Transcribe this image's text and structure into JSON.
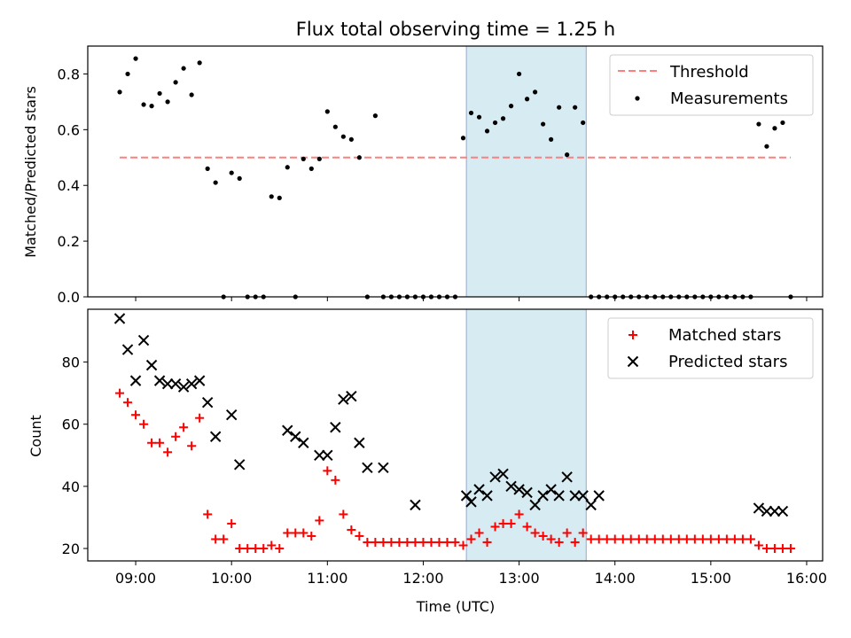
{
  "title": "Flux total observing time = 1.25 h",
  "colors": {
    "threshold": "#ff7f7f",
    "measurements": "#000000",
    "matched": "#ff0000",
    "predicted": "#000000",
    "shade": "#add8e6"
  },
  "chart_data": [
    {
      "type": "scatter",
      "panel": "top",
      "ylabel": "Matched/Predicted stars",
      "xlabel": "",
      "ylim": [
        0,
        0.9
      ],
      "yticks": [
        "0.0",
        "0.2",
        "0.4",
        "0.6",
        "0.8"
      ],
      "shaded_interval": [
        "12:27",
        "13:42"
      ],
      "legend_position": "upper right",
      "threshold": {
        "name": "Threshold",
        "y": 0.5,
        "x_range": [
          "08:50",
          "15:50"
        ]
      },
      "series": [
        {
          "name": "Measurements",
          "x": [
            "08:50",
            "08:55",
            "09:00",
            "09:05",
            "09:10",
            "09:15",
            "09:20",
            "09:25",
            "09:30",
            "09:35",
            "09:40",
            "09:45",
            "09:50",
            "09:55",
            "10:00",
            "10:05",
            "10:10",
            "10:15",
            "10:20",
            "10:25",
            "10:30",
            "10:35",
            "10:40",
            "10:45",
            "10:50",
            "10:55",
            "11:00",
            "11:05",
            "11:10",
            "11:15",
            "11:20",
            "11:25",
            "11:30",
            "11:35",
            "11:40",
            "11:45",
            "11:50",
            "11:55",
            "12:00",
            "12:05",
            "12:10",
            "12:15",
            "12:20",
            "12:25",
            "12:30",
            "12:35",
            "12:40",
            "12:45",
            "12:50",
            "12:55",
            "13:00",
            "13:05",
            "13:10",
            "13:15",
            "13:20",
            "13:25",
            "13:30",
            "13:35",
            "13:40",
            "13:45",
            "13:50",
            "13:55",
            "14:00",
            "14:05",
            "14:10",
            "14:15",
            "14:20",
            "14:25",
            "14:30",
            "14:35",
            "14:40",
            "14:45",
            "14:50",
            "14:55",
            "15:00",
            "15:05",
            "15:10",
            "15:15",
            "15:20",
            "15:25",
            "15:30",
            "15:35",
            "15:40",
            "15:45",
            "15:50"
          ],
          "y": [
            0.735,
            0.8,
            0.855,
            0.69,
            0.685,
            0.73,
            0.7,
            0.77,
            0.82,
            0.725,
            0.84,
            0.46,
            0.41,
            0.0,
            0.445,
            0.425,
            0.0,
            0.0,
            0.0,
            0.36,
            0.355,
            0.465,
            0.0,
            0.495,
            0.46,
            0.495,
            0.665,
            0.61,
            0.575,
            0.565,
            0.5,
            0.0,
            0.65,
            0.0,
            0.0,
            0.0,
            0.0,
            0.0,
            0.0,
            0.0,
            0.0,
            0.0,
            0.0,
            0.57,
            0.66,
            0.645,
            0.595,
            0.625,
            0.64,
            0.685,
            0.8,
            0.71,
            0.735,
            0.62,
            0.565,
            0.68,
            0.51,
            0.68,
            0.625,
            0.0,
            0.0,
            0.0,
            0.0,
            0.0,
            0.0,
            0.0,
            0.0,
            0.0,
            0.0,
            0.0,
            0.0,
            0.0,
            0.0,
            0.0,
            0.0,
            0.0,
            0.0,
            0.0,
            0.0,
            0.0,
            0.62,
            0.54,
            0.605,
            0.625,
            0.0
          ]
        }
      ]
    },
    {
      "type": "scatter",
      "panel": "bottom",
      "xlabel": "Time (UTC)",
      "ylabel": "Count",
      "ylim": [
        16,
        97
      ],
      "yticks": [
        "20",
        "40",
        "60",
        "80"
      ],
      "xticks": [
        "09:00",
        "10:00",
        "11:00",
        "12:00",
        "13:00",
        "14:00",
        "15:00",
        "16:00"
      ],
      "xlim": [
        "08:30",
        "16:10"
      ],
      "shaded_interval": [
        "12:27",
        "13:42"
      ],
      "legend_position": "upper right",
      "series": [
        {
          "name": "Matched stars",
          "marker": "plus",
          "x": [
            "08:50",
            "08:55",
            "09:00",
            "09:05",
            "09:10",
            "09:15",
            "09:20",
            "09:25",
            "09:30",
            "09:35",
            "09:40",
            "09:45",
            "09:50",
            "09:55",
            "10:00",
            "10:05",
            "10:10",
            "10:15",
            "10:20",
            "10:25",
            "10:30",
            "10:35",
            "10:40",
            "10:45",
            "10:50",
            "10:55",
            "11:00",
            "11:05",
            "11:10",
            "11:15",
            "11:20",
            "11:25",
            "11:30",
            "11:35",
            "11:40",
            "11:45",
            "11:50",
            "11:55",
            "12:00",
            "12:05",
            "12:10",
            "12:15",
            "12:20",
            "12:25",
            "12:30",
            "12:35",
            "12:40",
            "12:45",
            "12:50",
            "12:55",
            "13:00",
            "13:05",
            "13:10",
            "13:15",
            "13:20",
            "13:25",
            "13:30",
            "13:35",
            "13:40",
            "13:45",
            "13:50",
            "13:55",
            "14:00",
            "14:05",
            "14:10",
            "14:15",
            "14:20",
            "14:25",
            "14:30",
            "14:35",
            "14:40",
            "14:45",
            "14:50",
            "14:55",
            "15:00",
            "15:05",
            "15:10",
            "15:15",
            "15:20",
            "15:25",
            "15:30",
            "15:35",
            "15:40",
            "15:45",
            "15:50"
          ],
          "y": [
            70,
            67,
            63,
            60,
            54,
            54,
            51,
            56,
            59,
            53,
            62,
            31,
            23,
            23,
            28,
            20,
            20,
            20,
            20,
            21,
            20,
            25,
            25,
            25,
            24,
            29,
            45,
            42,
            31,
            26,
            24,
            22,
            22,
            22,
            22,
            22,
            22,
            22,
            22,
            22,
            22,
            22,
            22,
            21,
            23,
            25,
            22,
            27,
            28,
            28,
            31,
            27,
            25,
            24,
            23,
            22,
            25,
            22,
            25,
            23,
            23,
            23,
            23,
            23,
            23,
            23,
            23,
            23,
            23,
            23,
            23,
            23,
            23,
            23,
            23,
            23,
            23,
            23,
            23,
            23,
            21,
            20,
            20,
            20,
            20
          ]
        },
        {
          "name": "Predicted stars",
          "marker": "x",
          "x": [
            "08:50",
            "08:55",
            "09:00",
            "09:05",
            "09:10",
            "09:15",
            "09:20",
            "09:25",
            "09:30",
            "09:35",
            "09:40",
            "09:45",
            "09:50",
            "10:00",
            "10:05",
            "10:35",
            "10:40",
            "10:45",
            "10:55",
            "11:00",
            "11:05",
            "11:10",
            "11:15",
            "11:20",
            "11:25",
            "11:35",
            "11:55",
            "12:27",
            "12:30",
            "12:35",
            "12:40",
            "12:45",
            "12:50",
            "12:55",
            "13:00",
            "13:05",
            "13:10",
            "13:15",
            "13:20",
            "13:25",
            "13:30",
            "13:35",
            "13:40",
            "13:45",
            "13:50",
            "15:30",
            "15:35",
            "15:40",
            "15:45"
          ],
          "y": [
            94,
            84,
            74,
            87,
            79,
            74,
            73,
            73,
            72,
            73,
            74,
            67,
            56,
            63,
            47,
            58,
            56,
            54,
            50,
            50,
            59,
            68,
            69,
            54,
            46,
            46,
            34,
            37,
            35,
            39,
            37,
            43,
            44,
            40,
            39,
            38,
            34,
            37,
            39,
            37,
            43,
            37,
            37,
            34,
            37,
            33,
            32,
            32,
            32
          ]
        }
      ]
    }
  ]
}
